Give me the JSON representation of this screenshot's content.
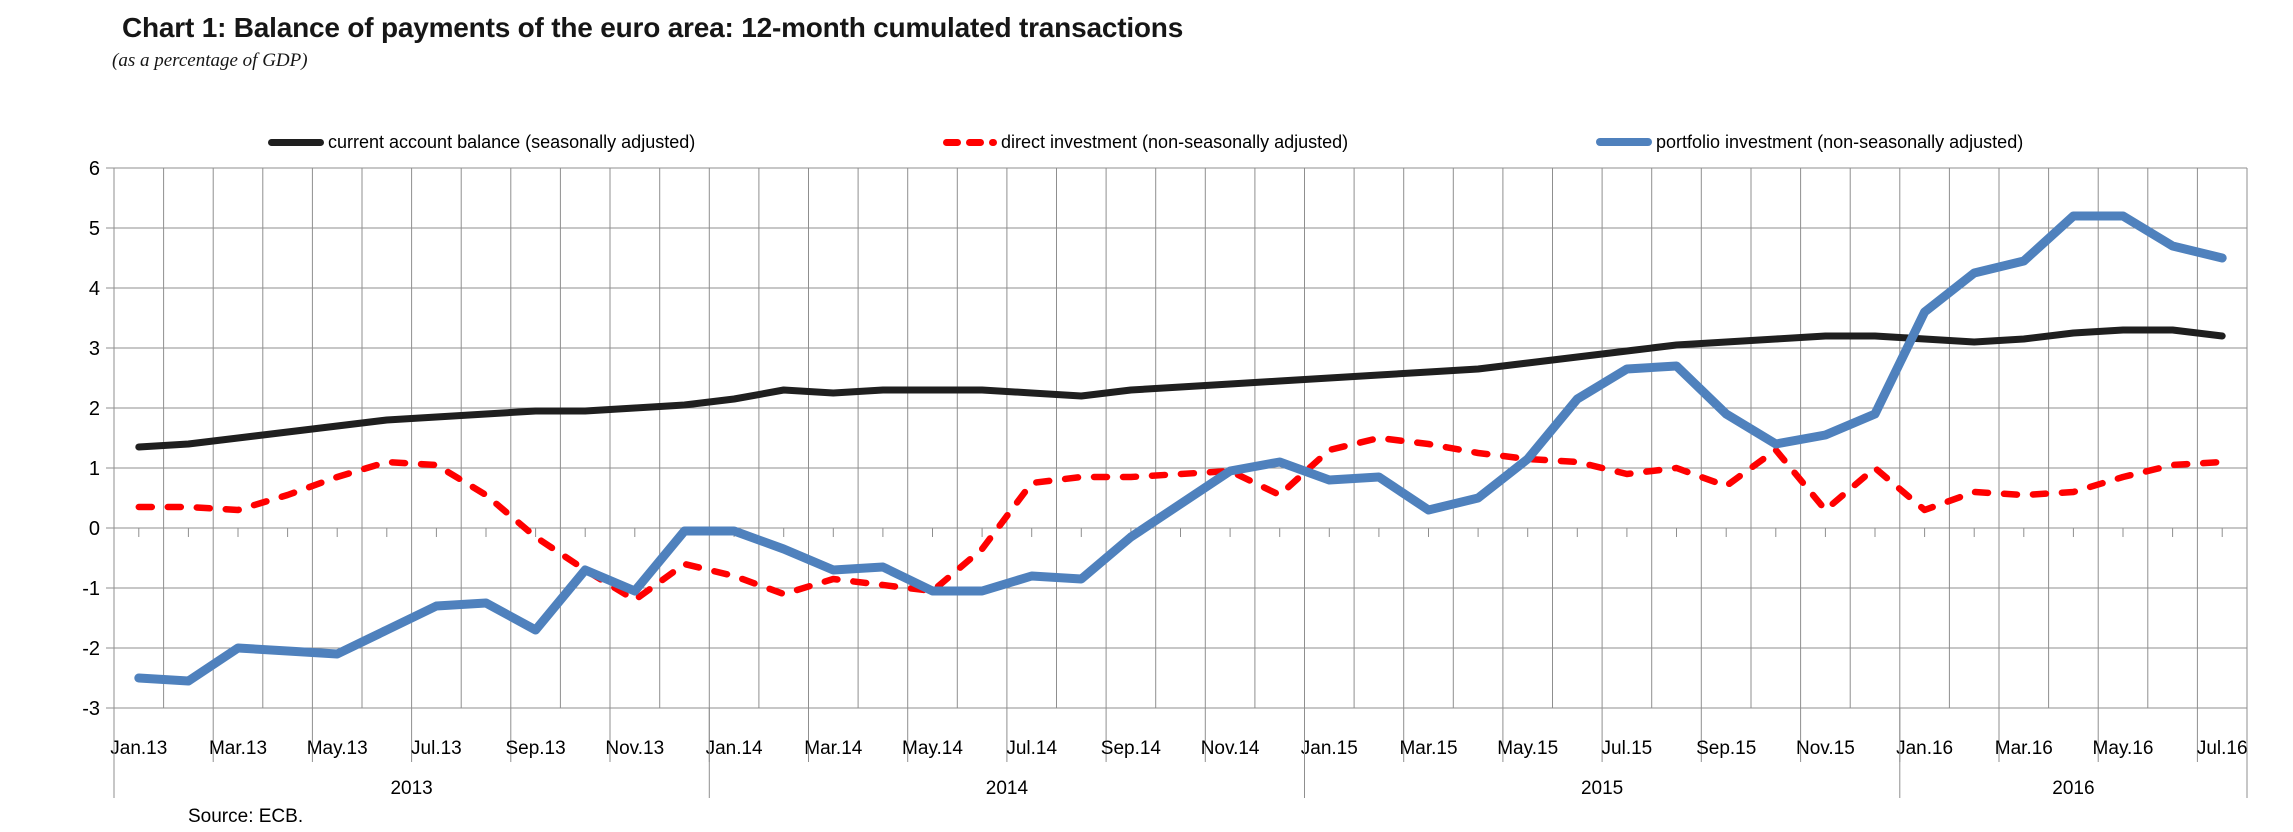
{
  "page": {
    "title": "Chart 1: Balance of payments of the euro area: 12-month cumulated transactions",
    "subtitle": "(as a percentage of GDP)",
    "source": "Source: ECB."
  },
  "chart_data": {
    "type": "line",
    "title": "Chart 1: Balance of payments of the euro area: 12-month cumulated transactions",
    "subtitle": "(as a percentage of GDP)",
    "xlabel": "",
    "ylabel": "",
    "ylim": [
      -3,
      6
    ],
    "y_ticks": [
      6,
      5,
      4,
      3,
      2,
      1,
      0,
      -1,
      -2,
      -3
    ],
    "grid": true,
    "legend_position": "top",
    "x": [
      "Jan.13",
      "Feb.13",
      "Mar.13",
      "Apr.13",
      "May.13",
      "Jun.13",
      "Jul.13",
      "Aug.13",
      "Sep.13",
      "Oct.13",
      "Nov.13",
      "Dec.13",
      "Jan.14",
      "Feb.14",
      "Mar.14",
      "Apr.14",
      "May.14",
      "Jun.14",
      "Jul.14",
      "Aug.14",
      "Sep.14",
      "Oct.14",
      "Nov.14",
      "Dec.14",
      "Jan.15",
      "Feb.15",
      "Mar.15",
      "Apr.15",
      "May.15",
      "Jun.15",
      "Jul.15",
      "Aug.15",
      "Sep.15",
      "Oct.15",
      "Nov.15",
      "Dec.15",
      "Jan.16",
      "Feb.16",
      "Mar.16",
      "Apr.16",
      "May.16",
      "Jun.16",
      "Jul.16"
    ],
    "x_label_interval": 2,
    "year_groups": [
      {
        "label": "2013",
        "months": 12
      },
      {
        "label": "2014",
        "months": 12
      },
      {
        "label": "2015",
        "months": 12
      },
      {
        "label": "2016",
        "months": 7
      }
    ],
    "series": [
      {
        "name": "current account balance (seasonally adjusted)",
        "color": "#1f1f1f",
        "style": "solid",
        "values": [
          1.35,
          1.4,
          1.5,
          1.6,
          1.7,
          1.8,
          1.85,
          1.9,
          1.95,
          1.95,
          2.0,
          2.05,
          2.15,
          2.3,
          2.25,
          2.3,
          2.3,
          2.3,
          2.25,
          2.2,
          2.3,
          2.35,
          2.4,
          2.45,
          2.5,
          2.55,
          2.6,
          2.65,
          2.75,
          2.85,
          2.95,
          3.05,
          3.1,
          3.15,
          3.2,
          3.2,
          3.15,
          3.1,
          3.15,
          3.25,
          3.3,
          3.3,
          3.2
        ]
      },
      {
        "name": "direct investment (non-seasonally adjusted)",
        "color": "#ff0000",
        "style": "dashed",
        "values": [
          0.35,
          0.35,
          0.3,
          0.55,
          0.85,
          1.1,
          1.05,
          0.55,
          -0.15,
          -0.7,
          -1.2,
          -0.6,
          -0.8,
          -1.1,
          -0.85,
          -0.95,
          -1.05,
          -0.35,
          0.75,
          0.85,
          0.85,
          0.9,
          0.95,
          0.55,
          1.3,
          1.5,
          1.4,
          1.25,
          1.15,
          1.1,
          0.9,
          1.0,
          0.7,
          1.3,
          0.3,
          1.0,
          0.3,
          0.6,
          0.55,
          0.6,
          0.85,
          1.05,
          1.1
        ]
      },
      {
        "name": "portfolio investment (non-seasonally adjusted)",
        "color": "#4f81bd",
        "style": "solid",
        "values": [
          -2.5,
          -2.55,
          -2.0,
          -2.05,
          -2.1,
          -1.7,
          -1.3,
          -1.25,
          -1.7,
          -0.7,
          -1.05,
          -0.05,
          -0.05,
          -0.35,
          -0.7,
          -0.65,
          -1.05,
          -1.05,
          -0.8,
          -0.85,
          -0.15,
          0.4,
          0.95,
          1.1,
          0.8,
          0.85,
          0.3,
          0.5,
          1.15,
          2.15,
          2.65,
          2.7,
          1.9,
          1.4,
          1.55,
          1.9,
          3.6,
          4.25,
          4.45,
          5.2,
          5.2,
          4.7,
          4.5
        ]
      }
    ],
    "gridline_color": "#8f8f8f"
  }
}
